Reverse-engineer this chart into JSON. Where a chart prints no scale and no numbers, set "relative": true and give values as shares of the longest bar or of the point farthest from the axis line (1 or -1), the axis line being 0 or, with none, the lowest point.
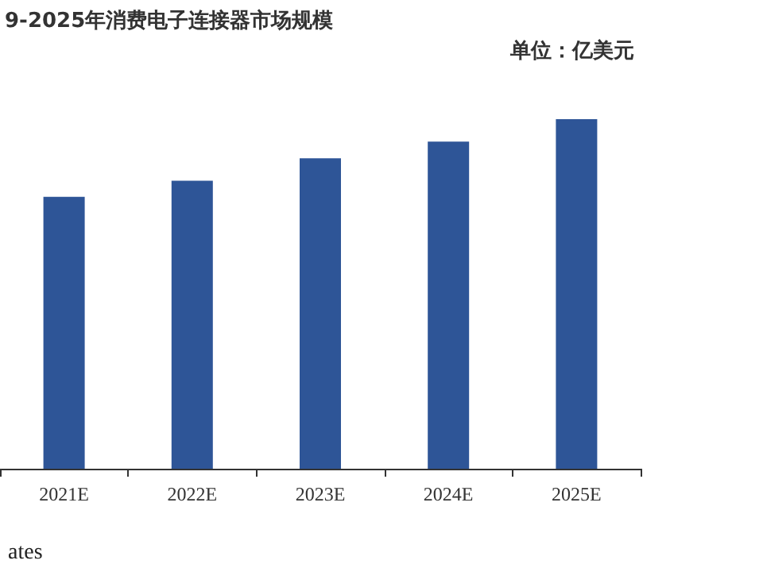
{
  "chart_data": {
    "type": "bar",
    "title": "9-2025年消费电子连接器市场规模",
    "subtitle": "单位：亿美元",
    "categories": [
      "2021E",
      "2022E",
      "2023E",
      "2024E",
      "2025E"
    ],
    "values": [
      0.778,
      0.824,
      0.888,
      0.936,
      1
    ],
    "relative": true,
    "color": "#2e5597",
    "grid": false,
    "annotations": [
      "ates"
    ]
  }
}
